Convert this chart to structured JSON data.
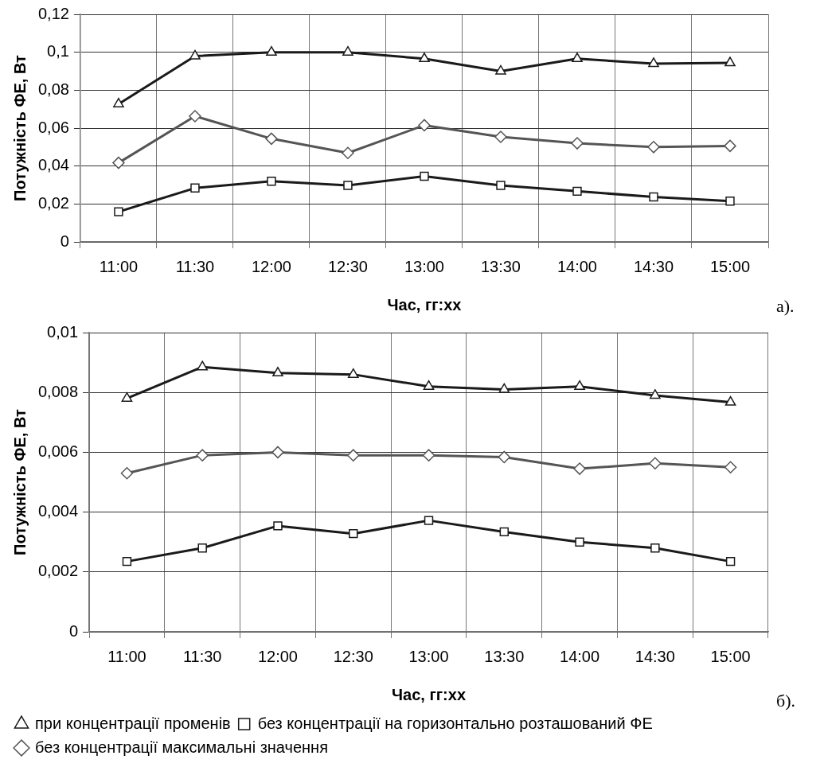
{
  "chart_data": [
    {
      "type": "line",
      "xlabel": "Час, гг:хх",
      "ylabel": "Потужність ФЕ, Вт",
      "annotations": [
        "а)."
      ],
      "categories": [
        "11:00",
        "11:30",
        "12:00",
        "12:30",
        "13:00",
        "13:30",
        "14:00",
        "14:30",
        "15:00"
      ],
      "series": [
        {
          "color": "#1a1a1a",
          "marker": "triangle",
          "values": [
            0.0727,
            0.098,
            0.1,
            0.1,
            0.0966,
            0.09,
            0.0966,
            0.094,
            0.0944
          ]
        },
        {
          "color": "#1a1a1a",
          "marker": "square",
          "values": [
            0.0159,
            0.0284,
            0.032,
            0.0298,
            0.0346,
            0.0298,
            0.0267,
            0.0237,
            0.0215
          ]
        },
        {
          "color": "#555555",
          "marker": "diamond",
          "values": [
            0.0417,
            0.0663,
            0.0544,
            0.0469,
            0.0615,
            0.0554,
            0.052,
            0.05,
            0.0506
          ]
        }
      ],
      "ylim": [
        0,
        0.12
      ],
      "yticks": [
        0,
        {
          "value": 0.02,
          "label": "0,02"
        },
        {
          "value": 0.04,
          "label": "0,04"
        },
        {
          "value": 0.06,
          "label": "0,06"
        },
        {
          "value": 0.08,
          "label": "0,08"
        },
        {
          "value": 0.1,
          "label": "0,1"
        },
        {
          "value": 0.12,
          "label": "0,12"
        }
      ],
      "grid": true,
      "legend": false,
      "line_style": "solid"
    },
    {
      "type": "line",
      "xlabel": "Час, гг:хх",
      "ylabel": "Потужність ФЕ, Вт",
      "annotations": [
        "б)."
      ],
      "categories": [
        "11:00",
        "11:30",
        "12:00",
        "12:30",
        "13:00",
        "13:30",
        "14:00",
        "14:30",
        "15:00"
      ],
      "series": [
        {
          "name": "при концентрації променів",
          "color": "#1a1a1a",
          "marker": "triangle",
          "values": [
            0.0078,
            0.00885,
            0.00865,
            0.0086,
            0.0082,
            0.0081,
            0.0082,
            0.0079,
            0.00767
          ]
        },
        {
          "name": "без концентрації на горизонтально розташований ФЕ",
          "color": "#1a1a1a",
          "marker": "square",
          "values": [
            0.00235,
            0.0028,
            0.00354,
            0.00328,
            0.00372,
            0.00334,
            0.003,
            0.0028,
            0.00235
          ]
        },
        {
          "name": "без концентрації максимальні значення",
          "color": "#555555",
          "marker": "diamond",
          "values": [
            0.0053,
            0.0059,
            0.006,
            0.0059,
            0.0059,
            0.00584,
            0.00545,
            0.00563,
            0.0055
          ]
        }
      ],
      "ylim": [
        0,
        0.01
      ],
      "yticks": [
        0,
        {
          "value": 0.002,
          "label": "0,002"
        },
        {
          "value": 0.004,
          "label": "0,004"
        },
        {
          "value": 0.006,
          "label": "0,006"
        },
        {
          "value": 0.008,
          "label": "0,008"
        },
        {
          "value": 0.01,
          "label": "0,01"
        }
      ],
      "grid": true,
      "legend": "bottom",
      "line_style": "solid"
    }
  ]
}
